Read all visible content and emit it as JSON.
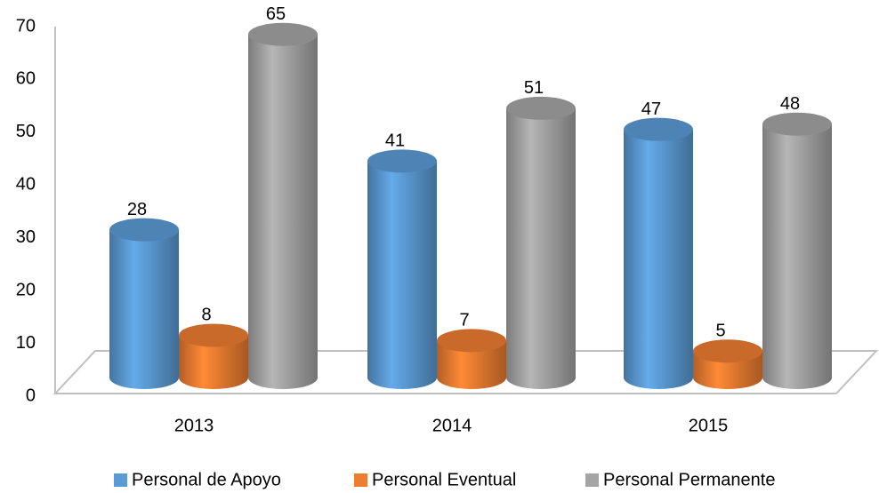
{
  "chart_data": {
    "type": "bar",
    "categories": [
      "2013",
      "2014",
      "2015"
    ],
    "series": [
      {
        "name": "Personal de Apoyo",
        "color": "#5b9bd5",
        "values": [
          28,
          41,
          47
        ]
      },
      {
        "name": "Personal Eventual",
        "color": "#ed7d31",
        "values": [
          8,
          7,
          5
        ]
      },
      {
        "name": "Personal Permanente",
        "color": "#a5a5a5",
        "values": [
          65,
          51,
          48
        ]
      }
    ],
    "ylim": [
      0,
      70
    ],
    "yticks": [
      0,
      10,
      20,
      30,
      40,
      50,
      60,
      70
    ],
    "legend": "bottom"
  }
}
